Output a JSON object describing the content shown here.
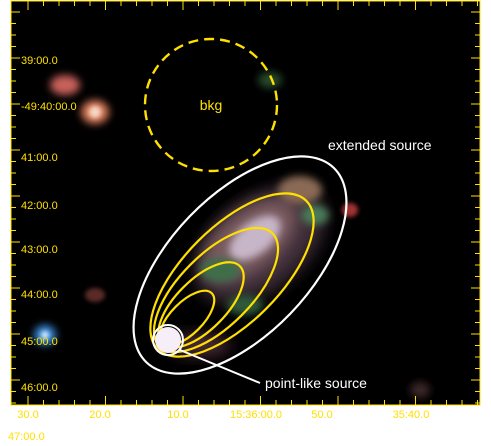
{
  "colors": {
    "background": "#000000",
    "axis": "#ffe000",
    "annotation": "#ffffff",
    "inner_contours": "#ffe000",
    "outer_region": "#ffffff"
  },
  "dec_axis": {
    "ticks": [
      "39:00.0",
      "-49:40:00.0",
      "41:00.0",
      "42:00.0",
      "43:00.0",
      "44:00.0",
      "45:00.0",
      "46:00.0"
    ]
  },
  "ra_axis": {
    "ticks": [
      "30.0",
      "20.0",
      "10.0",
      "15:36:00.0",
      "50.0",
      "35:40.0"
    ],
    "partial_lower_label": "47:00.0"
  },
  "labels": {
    "background_region": "bkg",
    "extended_source": "extended source",
    "point_source": "point-like source"
  }
}
